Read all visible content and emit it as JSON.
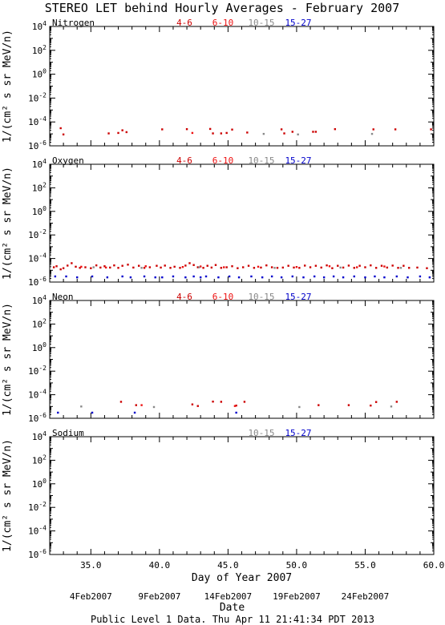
{
  "title": "STEREO LET behind Hourly Averages - February 2007",
  "footer": "Public Level 1 Data. Thu Apr 11 21:41:34 PDT 2013",
  "colors": {
    "4-6": "#cc0000",
    "6-10": "#ee1111",
    "10-15": "#888888",
    "15-27": "#0000cc"
  },
  "chart_data": [
    {
      "type": "scatter",
      "element": "Nitrogen",
      "ranges": [
        "4-6",
        "6-10",
        "10-15",
        "15-27"
      ],
      "xlim": [
        32,
        60
      ],
      "ylog": true,
      "ylim_exp": [
        -6,
        4
      ],
      "ylabel": "1/(cm² s sr MeV/n)",
      "series": [
        {
          "name": "4-6",
          "points": [
            [
              32.8,
              3e-05
            ],
            [
              33.0,
              9e-06
            ],
            [
              36.3,
              1.1e-05
            ],
            [
              37.0,
              1.2e-05
            ],
            [
              37.3,
              2e-05
            ],
            [
              37.6,
              1.4e-05
            ],
            [
              40.2,
              2.4e-05
            ],
            [
              42.0,
              2.5e-05
            ],
            [
              43.7,
              2.6e-05
            ],
            [
              43.9,
              1.1e-05
            ],
            [
              44.5,
              1.1e-05
            ],
            [
              44.9,
              1.2e-05
            ],
            [
              45.3,
              2.3e-05
            ],
            [
              46.4,
              1.3e-05
            ],
            [
              48.9,
              2.4e-05
            ],
            [
              49.1,
              1.1e-05
            ],
            [
              49.7,
              1.5e-05
            ],
            [
              51.2,
              1.5e-05
            ],
            [
              51.4,
              1.5e-05
            ],
            [
              52.8,
              2.5e-05
            ],
            [
              55.6,
              2.4e-05
            ],
            [
              57.2,
              2.4e-05
            ],
            [
              59.8,
              2.4e-05
            ]
          ]
        },
        {
          "name": "6-10",
          "points": [
            [
              42.4,
              1.2e-05
            ]
          ]
        },
        {
          "name": "10-15",
          "points": [
            [
              47.6,
              1e-05
            ],
            [
              50.1,
              9e-06
            ],
            [
              55.5,
              1e-05
            ]
          ]
        },
        {
          "name": "15-27",
          "points": []
        }
      ]
    },
    {
      "type": "scatter",
      "element": "Oxygen",
      "ranges": [
        "4-6",
        "6-10",
        "10-15",
        "15-27"
      ],
      "xlim": [
        32,
        60
      ],
      "ylog": true,
      "ylim_exp": [
        -6,
        4
      ],
      "ylabel": "1/(cm² s sr MeV/n)",
      "series": [
        {
          "name": "4-6",
          "points": [
            [
              32.3,
              1.8e-05
            ],
            [
              32.5,
              2.2e-05
            ],
            [
              32.8,
              1.2e-05
            ],
            [
              33.0,
              1.5e-05
            ],
            [
              33.3,
              2.5e-05
            ],
            [
              33.6,
              4e-05
            ],
            [
              33.9,
              2e-05
            ],
            [
              34.2,
              1.6e-05
            ],
            [
              34.6,
              1.8e-05
            ],
            [
              35.0,
              1.5e-05
            ],
            [
              35.4,
              2.6e-05
            ],
            [
              35.7,
              1.7e-05
            ],
            [
              36.0,
              2.2e-05
            ],
            [
              36.4,
              1.7e-05
            ],
            [
              36.7,
              2.6e-05
            ],
            [
              37.0,
              1.6e-05
            ],
            [
              37.3,
              2.4e-05
            ],
            [
              37.7,
              3e-05
            ],
            [
              38.1,
              1.7e-05
            ],
            [
              38.5,
              2.4e-05
            ],
            [
              38.9,
              1.6e-05
            ],
            [
              39.3,
              1.8e-05
            ],
            [
              39.8,
              2.4e-05
            ],
            [
              40.1,
              1.7e-05
            ],
            [
              40.4,
              2.5e-05
            ],
            [
              40.8,
              1.6e-05
            ],
            [
              41.1,
              2e-05
            ],
            [
              41.5,
              1.6e-05
            ],
            [
              41.9,
              2.5e-05
            ],
            [
              42.2,
              4e-05
            ],
            [
              42.5,
              2.8e-05
            ],
            [
              42.8,
              1.8e-05
            ],
            [
              43.2,
              1.6e-05
            ],
            [
              43.5,
              2.4e-05
            ],
            [
              43.8,
              1.7e-05
            ],
            [
              44.1,
              2.8e-05
            ],
            [
              44.5,
              1.6e-05
            ],
            [
              44.9,
              1.8e-05
            ],
            [
              45.3,
              2.2e-05
            ],
            [
              45.7,
              1.5e-05
            ],
            [
              46.1,
              1.8e-05
            ],
            [
              46.5,
              2.4e-05
            ],
            [
              46.9,
              1.6e-05
            ],
            [
              47.4,
              1.7e-05
            ],
            [
              47.8,
              2.6e-05
            ],
            [
              48.2,
              1.8e-05
            ],
            [
              48.6,
              1.6e-05
            ],
            [
              49.0,
              1.7e-05
            ],
            [
              49.4,
              2.4e-05
            ],
            [
              49.8,
              1.7e-05
            ],
            [
              50.2,
              1.6e-05
            ],
            [
              50.6,
              2.5e-05
            ],
            [
              51.0,
              1.8e-05
            ],
            [
              51.4,
              2.4e-05
            ],
            [
              51.8,
              1.7e-05
            ],
            [
              52.2,
              2.6e-05
            ],
            [
              52.6,
              1.5e-05
            ],
            [
              53.0,
              2.4e-05
            ],
            [
              53.4,
              1.7e-05
            ],
            [
              53.8,
              2.5e-05
            ],
            [
              54.2,
              1.6e-05
            ],
            [
              54.6,
              2.4e-05
            ],
            [
              55.0,
              1.8e-05
            ],
            [
              55.4,
              2.6e-05
            ],
            [
              55.8,
              1.6e-05
            ],
            [
              56.2,
              2.4e-05
            ],
            [
              56.6,
              1.7e-05
            ],
            [
              57.0,
              2.5e-05
            ],
            [
              57.4,
              1.6e-05
            ],
            [
              57.8,
              2.4e-05
            ],
            [
              58.2,
              1.6e-05
            ],
            [
              58.8,
              1.7e-05
            ],
            [
              59.5,
              1.5e-05
            ]
          ]
        },
        {
          "name": "6-10",
          "points": [
            [
              34.3,
              2e-05
            ],
            [
              36.1,
              1.7e-05
            ],
            [
              39.0,
              2.2e-05
            ],
            [
              41.7,
              1.9e-05
            ],
            [
              43.0,
              2.1e-05
            ],
            [
              44.7,
              1.8e-05
            ],
            [
              47.2,
              2e-05
            ],
            [
              50.0,
              1.9e-05
            ],
            [
              52.4,
              2.2e-05
            ],
            [
              54.4,
              1.8e-05
            ],
            [
              56.4,
              2.1e-05
            ]
          ]
        },
        {
          "name": "10-15",
          "points": [
            [
              35.2,
              1.8e-05
            ],
            [
              38.7,
              1.6e-05
            ],
            [
              42.9,
              1.8e-05
            ],
            [
              48.4,
              1.6e-05
            ],
            [
              53.2,
              1.7e-05
            ],
            [
              57.6,
              1.6e-05
            ]
          ]
        },
        {
          "name": "15-27",
          "points": [
            [
              32.4,
              3e-06
            ],
            [
              33.2,
              3e-06
            ],
            [
              34.0,
              2.5e-06
            ],
            [
              35.1,
              3e-06
            ],
            [
              36.2,
              2.5e-06
            ],
            [
              37.3,
              3e-06
            ],
            [
              37.9,
              2.5e-06
            ],
            [
              38.9,
              3e-06
            ],
            [
              39.7,
              2.5e-06
            ],
            [
              40.2,
              2.5e-06
            ],
            [
              41.0,
              3e-06
            ],
            [
              41.9,
              2.5e-06
            ],
            [
              42.5,
              3e-06
            ],
            [
              43.0,
              2.5e-06
            ],
            [
              43.4,
              3e-06
            ],
            [
              44.3,
              2.5e-06
            ],
            [
              45.1,
              3e-06
            ],
            [
              45.8,
              2.5e-06
            ],
            [
              46.7,
              3e-06
            ],
            [
              47.5,
              2.5e-06
            ],
            [
              48.2,
              3e-06
            ],
            [
              48.9,
              2.5e-06
            ],
            [
              49.7,
              3e-06
            ],
            [
              50.5,
              2.5e-06
            ],
            [
              51.3,
              3e-06
            ],
            [
              52.0,
              2.5e-06
            ],
            [
              52.7,
              3e-06
            ],
            [
              53.4,
              2.5e-06
            ],
            [
              54.2,
              3e-06
            ],
            [
              55.0,
              2.5e-06
            ],
            [
              55.7,
              3e-06
            ],
            [
              56.4,
              2.5e-06
            ],
            [
              57.3,
              3e-06
            ],
            [
              58.1,
              2.5e-06
            ],
            [
              59.0,
              3e-06
            ],
            [
              59.7,
              2.5e-06
            ]
          ]
        }
      ]
    },
    {
      "type": "scatter",
      "element": "Neon",
      "ranges": [
        "4-6",
        "6-10",
        "10-15",
        "15-27"
      ],
      "xlim": [
        32,
        60
      ],
      "ylog": true,
      "ylim_exp": [
        -6,
        4
      ],
      "ylabel": "1/(cm² s sr MeV/n)",
      "series": [
        {
          "name": "4-6",
          "points": [
            [
              37.2,
              2.5e-05
            ],
            [
              38.3,
              1.3e-05
            ],
            [
              42.4,
              1.5e-05
            ],
            [
              42.8,
              1.1e-05
            ],
            [
              43.9,
              2.6e-05
            ],
            [
              44.5,
              2.5e-05
            ],
            [
              45.6,
              1.2e-05
            ],
            [
              46.2,
              2.5e-05
            ],
            [
              51.6,
              1.3e-05
            ],
            [
              53.8,
              1.3e-05
            ],
            [
              55.4,
              1.2e-05
            ],
            [
              55.8,
              2.4e-05
            ],
            [
              57.3,
              2.5e-05
            ]
          ]
        },
        {
          "name": "6-10",
          "points": [
            [
              38.7,
              1.3e-05
            ],
            [
              45.5,
              1.1e-05
            ]
          ]
        },
        {
          "name": "10-15",
          "points": [
            [
              34.3,
              1e-05
            ],
            [
              39.6,
              9e-06
            ],
            [
              50.2,
              9e-06
            ],
            [
              56.9,
              1e-05
            ]
          ]
        },
        {
          "name": "15-27",
          "points": [
            [
              32.6,
              3e-06
            ],
            [
              35.1,
              3e-06
            ],
            [
              38.2,
              3e-06
            ],
            [
              45.6,
              3e-06
            ]
          ]
        }
      ]
    },
    {
      "type": "scatter",
      "element": "Sodium",
      "ranges": [
        "10-15",
        "15-27"
      ],
      "xlim": [
        32,
        60
      ],
      "ylog": true,
      "ylim_exp": [
        -6,
        4
      ],
      "ylabel": "1/(cm² s sr MeV/n)",
      "xlabel": "Day of Year 2007",
      "xticks": [
        "35.0",
        "40.0",
        "45.0",
        "50.0",
        "55.0",
        "60.0"
      ],
      "date_labels": [
        "4Feb2007",
        "9Feb2007",
        "14Feb2007",
        "19Feb2007",
        "24Feb2007"
      ],
      "date_axis_label": "Date",
      "series": []
    }
  ]
}
